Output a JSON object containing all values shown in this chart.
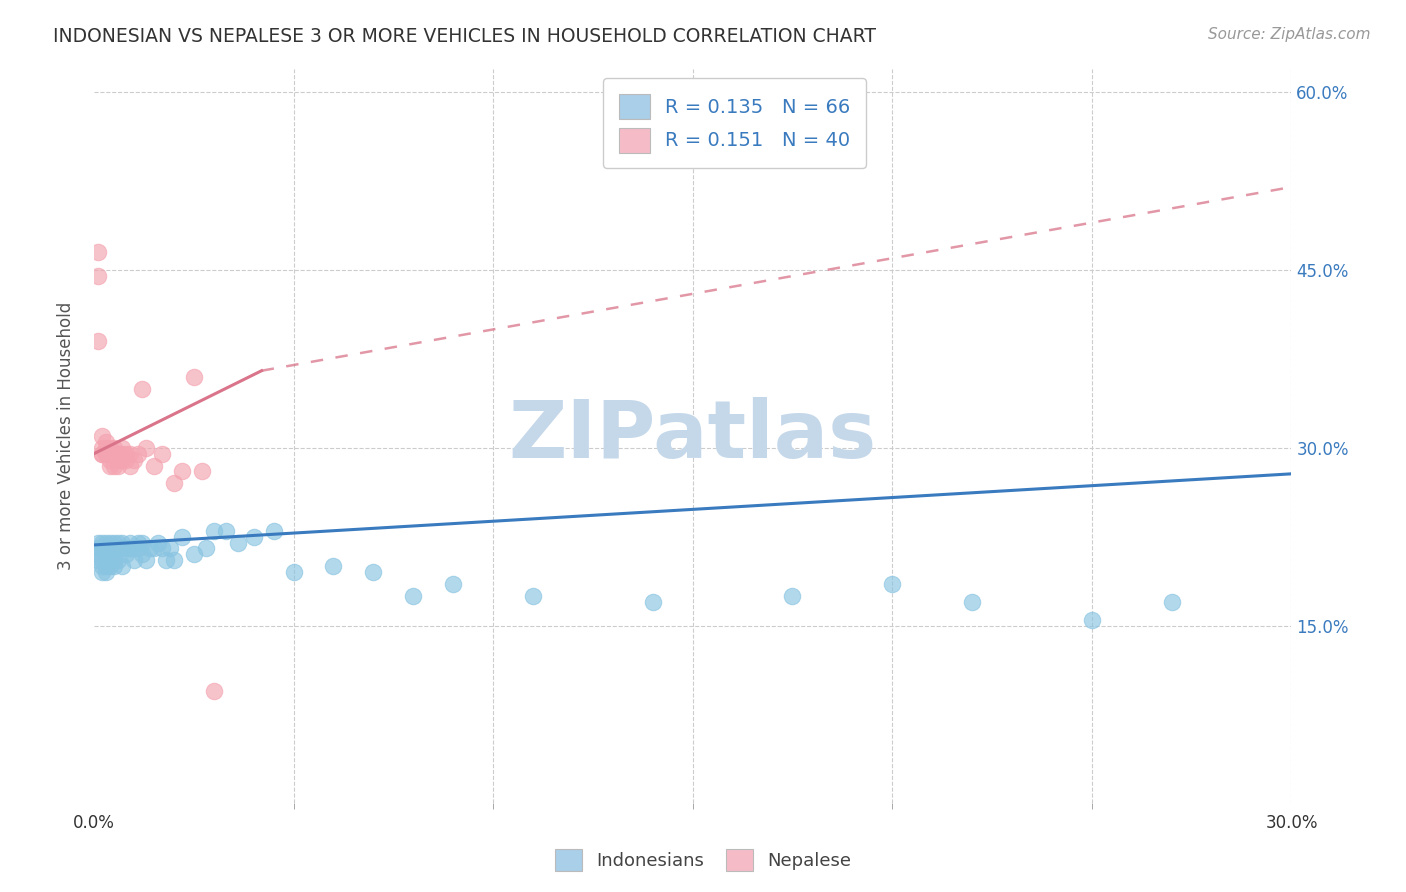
{
  "title": "INDONESIAN VS NEPALESE 3 OR MORE VEHICLES IN HOUSEHOLD CORRELATION CHART",
  "source": "Source: ZipAtlas.com",
  "ylabel_label": "3 or more Vehicles in Household",
  "R_indonesian": 0.135,
  "N_indonesian": 66,
  "R_nepalese": 0.151,
  "N_nepalese": 40,
  "color_indonesian": "#89c4e1",
  "color_nepalese": "#f4a4b0",
  "color_indonesian_line": "#3a7bbf",
  "color_nepalese_line": "#d9748a",
  "legend_patch_color_indonesian": "#aacfe8",
  "legend_patch_color_nepalese": "#f5bcc8",
  "legend_text_color": "#3a7bbf",
  "xmin": 0.0,
  "xmax": 0.3,
  "ymin": 0.0,
  "ymax": 0.62,
  "ytick_vals": [
    0.15,
    0.3,
    0.45,
    0.6
  ],
  "ytick_labels": [
    "15.0%",
    "30.0%",
    "45.0%",
    "60.0%"
  ],
  "xtick_major_vals": [
    0.0,
    0.3
  ],
  "xtick_major_labels": [
    "0.0%",
    "30.0%"
  ],
  "xtick_minor_vals": [
    0.05,
    0.1,
    0.15,
    0.2,
    0.25
  ],
  "watermark_text": "ZIPatlas",
  "watermark_color": "#c5d8ea",
  "indonesian_x": [
    0.001,
    0.001,
    0.001,
    0.001,
    0.002,
    0.002,
    0.002,
    0.002,
    0.002,
    0.003,
    0.003,
    0.003,
    0.003,
    0.003,
    0.004,
    0.004,
    0.004,
    0.004,
    0.005,
    0.005,
    0.005,
    0.005,
    0.006,
    0.006,
    0.006,
    0.007,
    0.007,
    0.007,
    0.008,
    0.008,
    0.009,
    0.009,
    0.01,
    0.01,
    0.011,
    0.011,
    0.012,
    0.012,
    0.013,
    0.014,
    0.015,
    0.016,
    0.017,
    0.018,
    0.019,
    0.02,
    0.022,
    0.025,
    0.028,
    0.03,
    0.033,
    0.036,
    0.04,
    0.045,
    0.05,
    0.06,
    0.07,
    0.08,
    0.09,
    0.11,
    0.14,
    0.175,
    0.2,
    0.22,
    0.25,
    0.27
  ],
  "indonesian_y": [
    0.215,
    0.205,
    0.22,
    0.21,
    0.195,
    0.22,
    0.215,
    0.205,
    0.2,
    0.22,
    0.215,
    0.205,
    0.2,
    0.195,
    0.215,
    0.22,
    0.2,
    0.205,
    0.215,
    0.22,
    0.205,
    0.2,
    0.22,
    0.215,
    0.205,
    0.215,
    0.22,
    0.2,
    0.215,
    0.21,
    0.22,
    0.215,
    0.215,
    0.205,
    0.22,
    0.215,
    0.22,
    0.21,
    0.205,
    0.215,
    0.215,
    0.22,
    0.215,
    0.205,
    0.215,
    0.205,
    0.225,
    0.21,
    0.215,
    0.23,
    0.23,
    0.22,
    0.225,
    0.23,
    0.195,
    0.2,
    0.195,
    0.175,
    0.185,
    0.175,
    0.17,
    0.175,
    0.185,
    0.17,
    0.155,
    0.17
  ],
  "nepalese_x": [
    0.001,
    0.001,
    0.001,
    0.002,
    0.002,
    0.002,
    0.002,
    0.003,
    0.003,
    0.003,
    0.003,
    0.004,
    0.004,
    0.004,
    0.004,
    0.005,
    0.005,
    0.005,
    0.005,
    0.006,
    0.006,
    0.006,
    0.007,
    0.007,
    0.007,
    0.008,
    0.008,
    0.009,
    0.009,
    0.01,
    0.011,
    0.012,
    0.013,
    0.015,
    0.017,
    0.02,
    0.022,
    0.025,
    0.027,
    0.03
  ],
  "nepalese_y": [
    0.39,
    0.445,
    0.465,
    0.295,
    0.31,
    0.295,
    0.3,
    0.295,
    0.305,
    0.295,
    0.3,
    0.285,
    0.29,
    0.295,
    0.3,
    0.295,
    0.3,
    0.285,
    0.295,
    0.295,
    0.29,
    0.285,
    0.295,
    0.29,
    0.3,
    0.29,
    0.295,
    0.295,
    0.285,
    0.29,
    0.295,
    0.35,
    0.3,
    0.285,
    0.295,
    0.27,
    0.28,
    0.36,
    0.28,
    0.095
  ]
}
